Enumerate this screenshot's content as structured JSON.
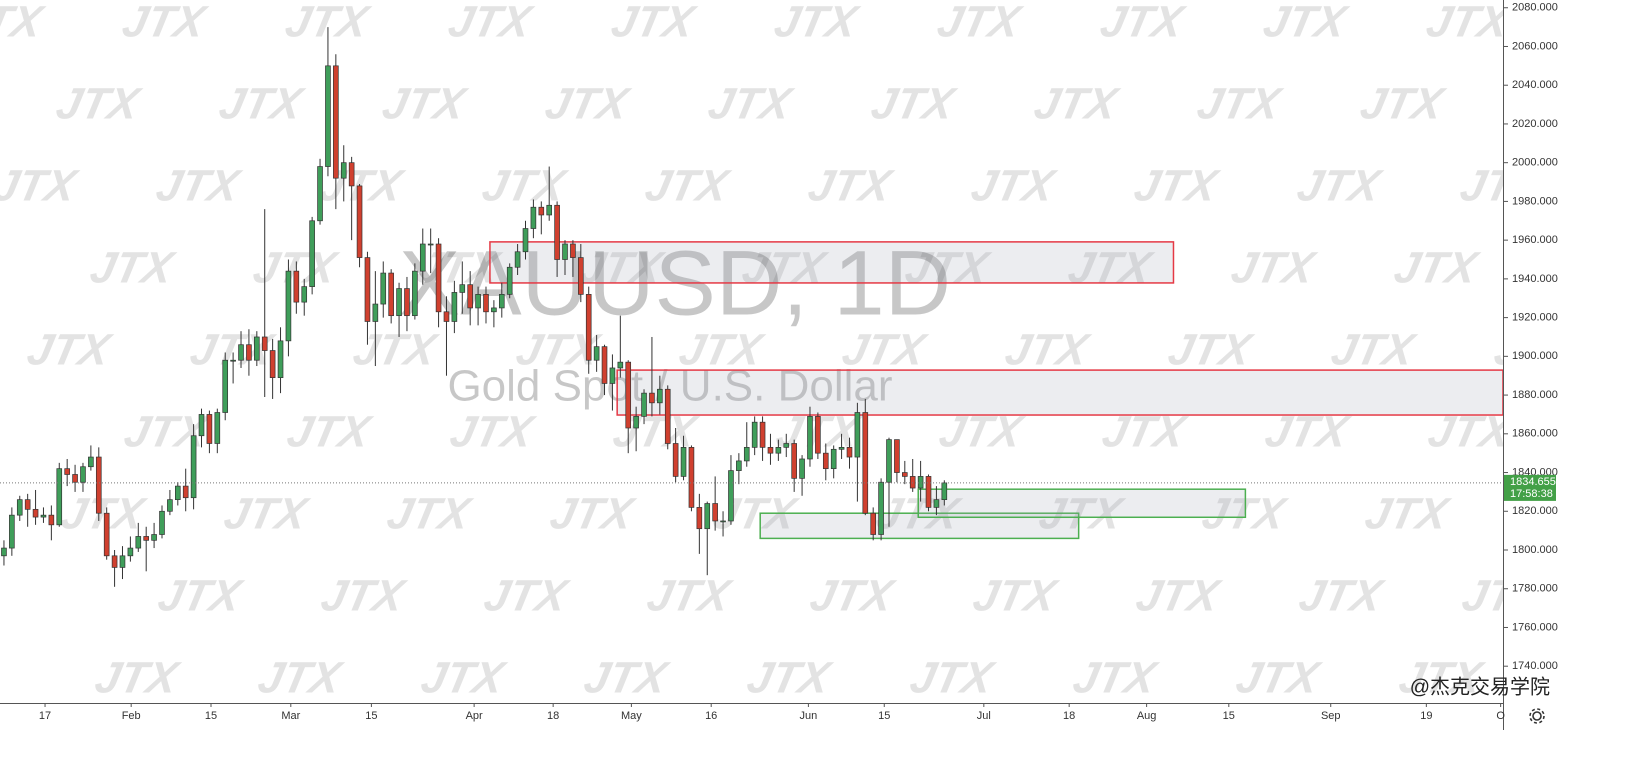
{
  "chart_data": {
    "type": "candlestick",
    "title": "XAUUSD, 1D",
    "subtitle": "Gold Spot / U.S. Dollar",
    "watermark": "JTX",
    "credit": "@杰克交易学院",
    "up_color": "#3f9e5a",
    "down_color": "#d0402f",
    "xlim": [
      -0.5,
      189.7
    ],
    "xticks": [
      {
        "value": 5.2,
        "label": "17"
      },
      {
        "value": 16.1,
        "label": "Feb"
      },
      {
        "value": 26.2,
        "label": "15"
      },
      {
        "value": 36.3,
        "label": "Mar"
      },
      {
        "value": 46.5,
        "label": "15"
      },
      {
        "value": 59.5,
        "label": "Apr"
      },
      {
        "value": 69.5,
        "label": "18"
      },
      {
        "value": 79.4,
        "label": "May"
      },
      {
        "value": 89.5,
        "label": "16"
      },
      {
        "value": 101.8,
        "label": "Jun"
      },
      {
        "value": 111.4,
        "label": "15"
      },
      {
        "value": 124,
        "label": "Jul"
      },
      {
        "value": 134.8,
        "label": "18"
      },
      {
        "value": 144.6,
        "label": "Aug"
      },
      {
        "value": 155,
        "label": "15"
      },
      {
        "value": 167.9,
        "label": "Sep"
      },
      {
        "value": 180,
        "label": "19"
      },
      {
        "value": 189.4,
        "label": "O"
      }
    ],
    "ylim": [
      1721,
      2084
    ],
    "yticks": [
      {
        "value": 1740,
        "label": "1740.000"
      },
      {
        "value": 1760,
        "label": "1760.000"
      },
      {
        "value": 1780,
        "label": "1780.000"
      },
      {
        "value": 1800,
        "label": "1800.000"
      },
      {
        "value": 1820,
        "label": "1820.000"
      },
      {
        "value": 1840,
        "label": "1840.000"
      },
      {
        "value": 1860,
        "label": "1860.000"
      },
      {
        "value": 1880,
        "label": "1880.000"
      },
      {
        "value": 1900,
        "label": "1900.000"
      },
      {
        "value": 1920,
        "label": "1920.000"
      },
      {
        "value": 1940,
        "label": "1940.000"
      },
      {
        "value": 1960,
        "label": "1960.000"
      },
      {
        "value": 1980,
        "label": "1980.000"
      },
      {
        "value": 2000,
        "label": "2000.000"
      },
      {
        "value": 2020,
        "label": "2020.000"
      },
      {
        "value": 2040,
        "label": "2040.000"
      },
      {
        "value": 2060,
        "label": "2060.000"
      },
      {
        "value": 2080,
        "label": "2080.000"
      }
    ],
    "grid": false,
    "last_price": 1834.655,
    "last_price_color": "#43a047",
    "countdown": "17:58:38",
    "ohlc": [
      [
        1797,
        1805,
        1792,
        1801
      ],
      [
        1801,
        1822,
        1797,
        1818
      ],
      [
        1818,
        1828,
        1815,
        1826
      ],
      [
        1826,
        1829,
        1812,
        1821
      ],
      [
        1821,
        1831,
        1813,
        1817
      ],
      [
        1817,
        1822,
        1814,
        1818
      ],
      [
        1818,
        1823,
        1805,
        1813
      ],
      [
        1813,
        1845,
        1812,
        1842
      ],
      [
        1842,
        1847,
        1833,
        1839
      ],
      [
        1839,
        1844,
        1830,
        1835
      ],
      [
        1835,
        1845,
        1830,
        1843
      ],
      [
        1843,
        1854,
        1841,
        1848
      ],
      [
        1848,
        1853,
        1815,
        1819
      ],
      [
        1819,
        1822,
        1795,
        1797
      ],
      [
        1797,
        1800,
        1781,
        1791
      ],
      [
        1791,
        1802,
        1785,
        1797
      ],
      [
        1797,
        1807,
        1794,
        1801
      ],
      [
        1801,
        1814,
        1799,
        1807
      ],
      [
        1807,
        1812,
        1789,
        1805
      ],
      [
        1805,
        1814,
        1801,
        1808
      ],
      [
        1808,
        1823,
        1806,
        1820
      ],
      [
        1820,
        1831,
        1818,
        1826
      ],
      [
        1826,
        1835,
        1823,
        1833
      ],
      [
        1833,
        1842,
        1820,
        1827
      ],
      [
        1827,
        1865,
        1821,
        1859
      ],
      [
        1859,
        1873,
        1853,
        1870
      ],
      [
        1870,
        1872,
        1850,
        1855
      ],
      [
        1855,
        1873,
        1850,
        1871
      ],
      [
        1871,
        1902,
        1867,
        1898
      ],
      [
        1898,
        1902,
        1886,
        1898
      ],
      [
        1898,
        1913,
        1894,
        1906
      ],
      [
        1906,
        1914,
        1890,
        1898
      ],
      [
        1898,
        1913,
        1895,
        1910
      ],
      [
        1910,
        1976,
        1879,
        1903
      ],
      [
        1903,
        1909,
        1878,
        1889
      ],
      [
        1889,
        1915,
        1881,
        1908
      ],
      [
        1908,
        1950,
        1900,
        1944
      ],
      [
        1944,
        1949,
        1922,
        1928
      ],
      [
        1928,
        1940,
        1921,
        1936
      ],
      [
        1936,
        1972,
        1932,
        1970
      ],
      [
        1970,
        2002,
        1968,
        1998
      ],
      [
        1998,
        2070,
        1993,
        2050
      ],
      [
        2050,
        2056,
        1976,
        1992
      ],
      [
        1992,
        2009,
        1980,
        2000
      ],
      [
        2000,
        2003,
        1960,
        1988
      ],
      [
        1988,
        1989,
        1946,
        1951
      ],
      [
        1951,
        1954,
        1906,
        1918
      ],
      [
        1918,
        1944,
        1895,
        1927
      ],
      [
        1927,
        1949,
        1920,
        1943
      ],
      [
        1943,
        1945,
        1917,
        1921
      ],
      [
        1921,
        1938,
        1910,
        1935
      ],
      [
        1935,
        1941,
        1913,
        1921
      ],
      [
        1921,
        1948,
        1919,
        1944
      ],
      [
        1944,
        1966,
        1937,
        1958
      ],
      [
        1958,
        1966,
        1943,
        1958
      ],
      [
        1958,
        1961,
        1915,
        1923
      ],
      [
        1923,
        1931,
        1890,
        1918
      ],
      [
        1918,
        1939,
        1912,
        1933
      ],
      [
        1933,
        1949,
        1922,
        1937
      ],
      [
        1937,
        1944,
        1916,
        1925
      ],
      [
        1925,
        1936,
        1916,
        1932
      ],
      [
        1932,
        1936,
        1917,
        1923
      ],
      [
        1923,
        1929,
        1915,
        1925
      ],
      [
        1925,
        1938,
        1920,
        1932
      ],
      [
        1932,
        1948,
        1930,
        1946
      ],
      [
        1946,
        1958,
        1942,
        1954
      ],
      [
        1954,
        1970,
        1950,
        1966
      ],
      [
        1966,
        1981,
        1961,
        1977
      ],
      [
        1977,
        1980,
        1963,
        1973
      ],
      [
        1973,
        1998,
        1970,
        1978
      ],
      [
        1978,
        1980,
        1941,
        1950
      ],
      [
        1950,
        1960,
        1942,
        1958
      ],
      [
        1958,
        1960,
        1941,
        1951
      ],
      [
        1951,
        1958,
        1928,
        1932
      ],
      [
        1932,
        1936,
        1891,
        1898
      ],
      [
        1898,
        1911,
        1892,
        1905
      ],
      [
        1905,
        1906,
        1880,
        1886
      ],
      [
        1886,
        1901,
        1872,
        1894
      ],
      [
        1894,
        1921,
        1889,
        1897
      ],
      [
        1897,
        1898,
        1850,
        1863
      ],
      [
        1863,
        1874,
        1851,
        1869
      ],
      [
        1869,
        1883,
        1865,
        1881
      ],
      [
        1881,
        1910,
        1869,
        1876
      ],
      [
        1876,
        1890,
        1870,
        1883
      ],
      [
        1883,
        1885,
        1852,
        1855
      ],
      [
        1855,
        1863,
        1835,
        1838
      ],
      [
        1838,
        1859,
        1836,
        1853
      ],
      [
        1853,
        1854,
        1820,
        1822
      ],
      [
        1822,
        1829,
        1798,
        1811
      ],
      [
        1811,
        1825,
        1787,
        1824
      ],
      [
        1824,
        1838,
        1810,
        1815
      ],
      [
        1815,
        1820,
        1807,
        1815
      ],
      [
        1815,
        1849,
        1813,
        1841
      ],
      [
        1841,
        1850,
        1834,
        1846
      ],
      [
        1846,
        1866,
        1843,
        1853
      ],
      [
        1853,
        1869,
        1849,
        1866
      ],
      [
        1866,
        1869,
        1846,
        1853
      ],
      [
        1853,
        1860,
        1844,
        1850
      ],
      [
        1850,
        1857,
        1846,
        1853
      ],
      [
        1853,
        1860,
        1848,
        1855
      ],
      [
        1855,
        1857,
        1830,
        1837
      ],
      [
        1837,
        1849,
        1828,
        1847
      ],
      [
        1847,
        1874,
        1843,
        1869
      ],
      [
        1869,
        1871,
        1847,
        1850
      ],
      [
        1850,
        1855,
        1836,
        1842
      ],
      [
        1842,
        1854,
        1837,
        1852
      ],
      [
        1852,
        1860,
        1847,
        1853
      ],
      [
        1853,
        1858,
        1842,
        1848
      ],
      [
        1848,
        1876,
        1825,
        1871
      ],
      [
        1871,
        1878,
        1818,
        1819
      ],
      [
        1819,
        1822,
        1805,
        1808
      ],
      [
        1808,
        1837,
        1805,
        1835
      ],
      [
        1835,
        1858,
        1812,
        1857
      ],
      [
        1857,
        1857,
        1835,
        1840
      ],
      [
        1840,
        1846,
        1834,
        1838
      ],
      [
        1838,
        1847,
        1830,
        1832
      ],
      [
        1832,
        1846,
        1825,
        1838
      ],
      [
        1838,
        1839,
        1820,
        1822
      ],
      [
        1822,
        1833,
        1818,
        1826
      ],
      [
        1826,
        1836,
        1823,
        1834.655
      ]
    ],
    "zones": [
      {
        "x": [
          61.5,
          148
        ],
        "y": [
          1937.9,
          1959.1
        ],
        "color": "#e53945"
      },
      {
        "x": [
          77.6,
          189.7
        ],
        "y": [
          1869.7,
          1892.9
        ],
        "color": "#e53945"
      },
      {
        "x": [
          95.7,
          136
        ],
        "y": [
          1806,
          1819
        ],
        "color": "#4caf50"
      },
      {
        "x": [
          115.7,
          157.1
        ],
        "y": [
          1816.9,
          1831.4
        ],
        "color": "#4caf50"
      }
    ]
  }
}
